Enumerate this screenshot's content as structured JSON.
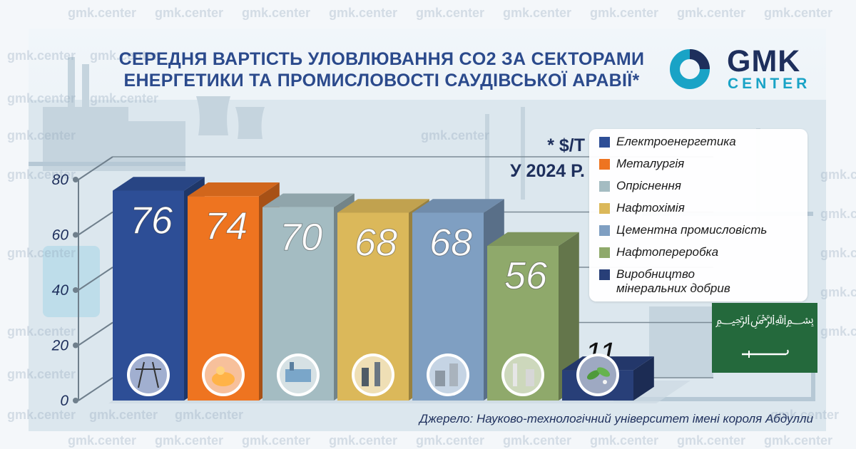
{
  "watermark": "gmk.center",
  "title": {
    "line1": "СЕРЕДНЯ ВАРТІСТЬ УЛОВЛЮВАННЯ CO2 ЗА СЕКТОРАМИ",
    "line2": "ЕНЕРГЕТИКИ ТА ПРОМИСЛОВОСТІ САУДІВСЬКОЇ АРАВІЇ*"
  },
  "logo": {
    "main": "GMK",
    "sub": "CENTER"
  },
  "unit": {
    "line1": "* $/Т",
    "line2": "У 2024 Р."
  },
  "source": "Джерело: Науково-технологічний університет імені короля Абдулли",
  "colors": {
    "title": "#2b4a8c",
    "logo_dark": "#1e2f5c",
    "logo_accent": "#19a3c6",
    "flag_green": "#24693c"
  },
  "chart_data": {
    "type": "bar",
    "categories": [
      "Електроенергетика",
      "Металургія",
      "Опріснення",
      "Нафтохімія",
      "Цементна промисловість",
      "Нафтопереробка",
      "Виробництво мінеральних добрив"
    ],
    "values": [
      76,
      74,
      70,
      68,
      68,
      56,
      11
    ],
    "value_labels": [
      "76",
      "74",
      "70",
      "68",
      "68",
      "56",
      "11"
    ],
    "colors": [
      "#2d4e96",
      "#ee7420",
      "#a4bcc2",
      "#dbb85a",
      "#7f9fc2",
      "#8fa96b",
      "#283f78"
    ],
    "legend_items": [
      "Електроенергетика",
      "Металургія",
      "Опріснення",
      "Нафтохімія",
      "Цементна промисловість",
      "Нафтопереробка",
      "Виробництво мінеральних добрив"
    ],
    "legend_position": "right",
    "yticks": [
      "0",
      "20",
      "40",
      "60",
      "80"
    ],
    "ylim": [
      0,
      80
    ],
    "grid": true,
    "icons": [
      "power-lines-icon",
      "molten-metal-icon",
      "desalination-plant-icon",
      "petrochemical-plant-icon",
      "cement-plant-icon",
      "refinery-icon",
      "fertilizer-icon"
    ]
  }
}
